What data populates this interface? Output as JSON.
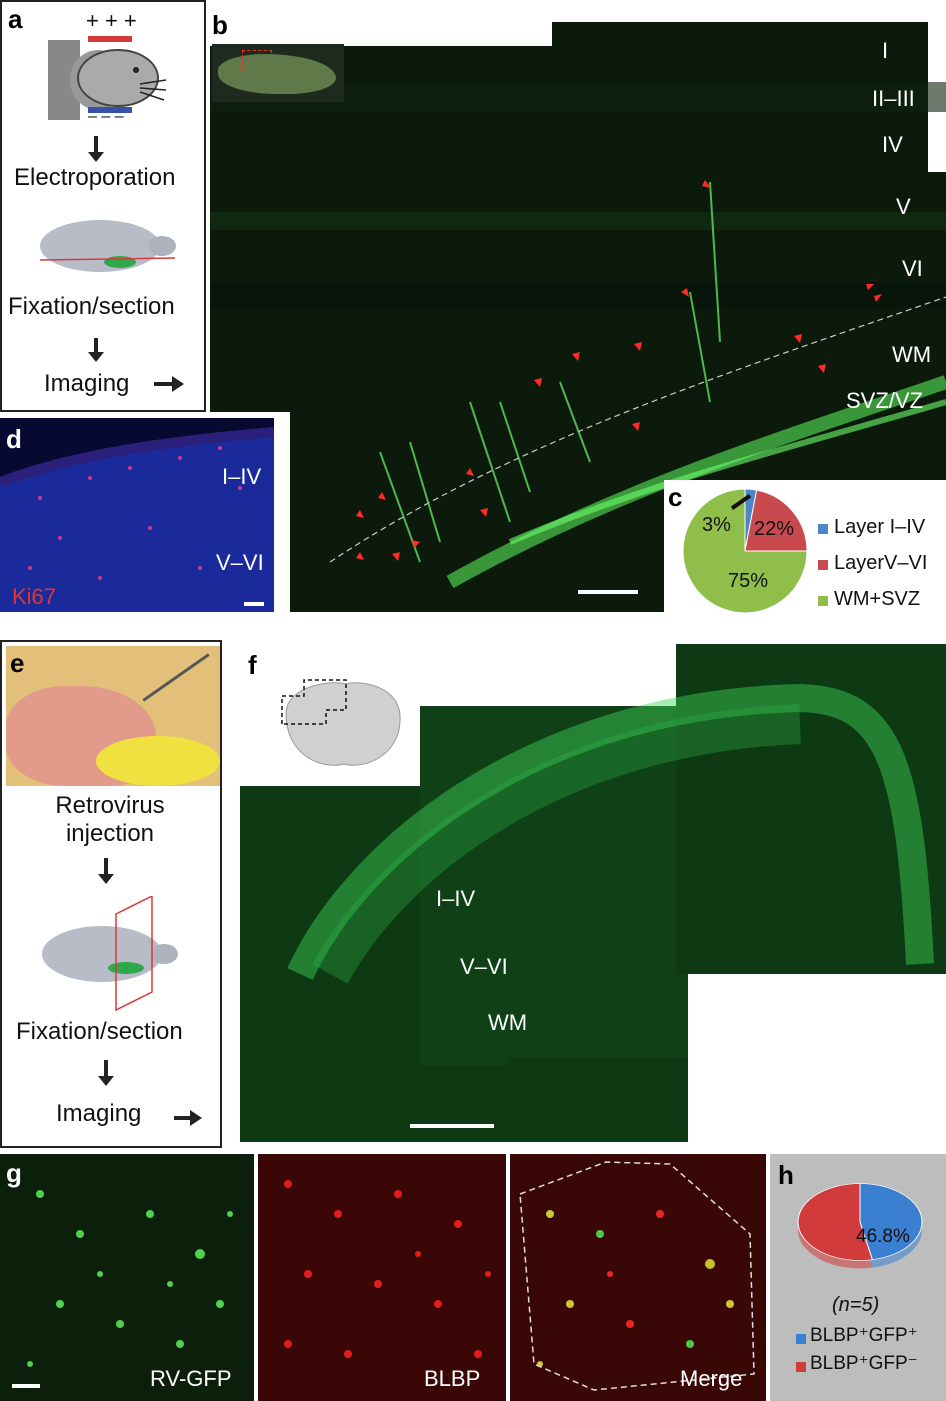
{
  "panels": {
    "a": {
      "label": "a",
      "electrodes": {
        "plus": "+ + +",
        "minus": "– – –"
      },
      "steps": [
        "Electroporation",
        "Fixation/section",
        "Imaging"
      ]
    },
    "b": {
      "label": "b",
      "layers": [
        "I",
        "II–III",
        "IV",
        "V",
        "VI",
        "WM",
        "SVZ/VZ"
      ]
    },
    "c": {
      "label": "c",
      "chart_data": {
        "type": "pie",
        "categories": [
          "Layer I–IV",
          "LayerV–VI",
          "WM+SVZ"
        ],
        "values": [
          3,
          22,
          75
        ],
        "value_labels": [
          "3%",
          "22%",
          "75%"
        ],
        "colors": [
          "#4a86c8",
          "#c84a4f",
          "#8fbf4a"
        ],
        "legend": "right"
      }
    },
    "d": {
      "label": "d",
      "layers": [
        "I–IV",
        "V–VI"
      ],
      "stain": "Ki67"
    },
    "e": {
      "label": "e",
      "steps": [
        "Retrovirus\ninjection",
        "Fixation/section",
        "Imaging"
      ]
    },
    "f": {
      "label": "f",
      "layers": [
        "I–IV",
        "V–VI",
        "WM"
      ]
    },
    "g": {
      "label": "g",
      "channels": [
        "RV-GFP",
        "BLBP",
        "Merge"
      ]
    },
    "h": {
      "label": "h",
      "n_label": "(n=5)",
      "chart_data": {
        "type": "pie",
        "categories": [
          "BLBP⁺GFP⁺",
          "BLBP⁺GFP⁻"
        ],
        "values": [
          46.8,
          53.2
        ],
        "value_labels": [
          "46.8%",
          ""
        ],
        "colors": [
          "#3b7fd1",
          "#d23b3b"
        ],
        "legend": "bottom"
      }
    }
  }
}
